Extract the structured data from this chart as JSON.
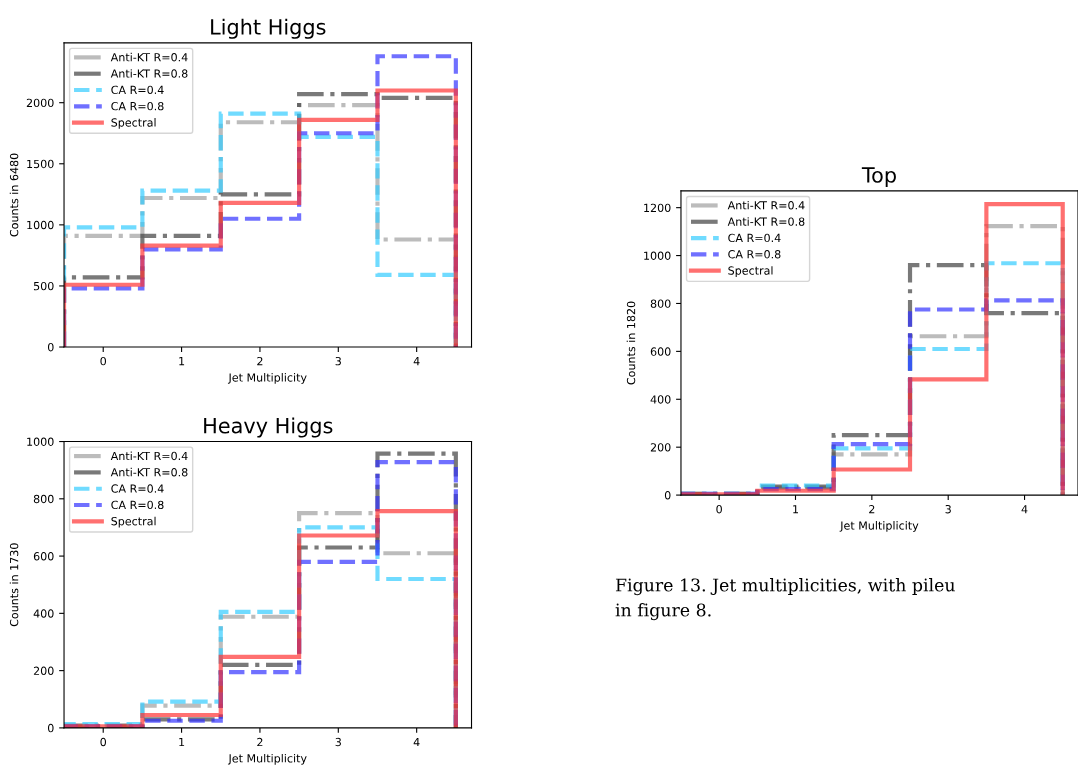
{
  "chart_data": [
    {
      "type": "histogram",
      "title": "Light Higgs",
      "xlabel": "Jet Multiplicity",
      "ylabel": "Counts in 6480",
      "bins": [
        -0.5,
        0.5,
        1.5,
        2.5,
        3.5,
        4.5
      ],
      "xlim": [
        -0.5,
        4.7
      ],
      "xticks": [
        0,
        1,
        2,
        3,
        4
      ],
      "ylim": [
        0,
        2490
      ],
      "yticks": [
        0,
        500,
        1000,
        1500,
        2000
      ],
      "legend": "top left",
      "grid": false,
      "series": [
        {
          "name": "Anti-KT R=0.4",
          "color": "#a0a0a0",
          "line_style": "dashdot",
          "values": [
            910,
            1220,
            1840,
            1980,
            880
          ]
        },
        {
          "name": "Anti-KT R=0.8",
          "color": "#404040",
          "line_style": "dashdot",
          "values": [
            570,
            910,
            1250,
            2070,
            2040
          ]
        },
        {
          "name": "CA R=0.4",
          "color": "#33ccff",
          "line_style": "dashed",
          "values": [
            980,
            1280,
            1910,
            1720,
            590
          ]
        },
        {
          "name": "CA R=0.8",
          "color": "#3333ff",
          "line_style": "dashed",
          "values": [
            480,
            800,
            1050,
            1750,
            2380
          ]
        },
        {
          "name": "Spectral",
          "color": "#ff3333",
          "line_style": "solid",
          "values": [
            510,
            830,
            1180,
            1860,
            2100
          ]
        }
      ]
    },
    {
      "type": "histogram",
      "title": "Heavy Higgs",
      "xlabel": "Jet Multiplicity",
      "ylabel": "Counts in 1730",
      "bins": [
        -0.5,
        0.5,
        1.5,
        2.5,
        3.5,
        4.5
      ],
      "xlim": [
        -0.5,
        4.7
      ],
      "xticks": [
        0,
        1,
        2,
        3,
        4
      ],
      "ylim": [
        0,
        1000
      ],
      "yticks": [
        0,
        200,
        400,
        600,
        800,
        1000
      ],
      "legend": "top left",
      "grid": false,
      "series": [
        {
          "name": "Anti-KT R=0.4",
          "color": "#a0a0a0",
          "line_style": "dashdot",
          "values": [
            10,
            78,
            388,
            750,
            610
          ]
        },
        {
          "name": "Anti-KT R=0.8",
          "color": "#404040",
          "line_style": "dashdot",
          "values": [
            5,
            30,
            220,
            630,
            958
          ]
        },
        {
          "name": "CA R=0.4",
          "color": "#33ccff",
          "line_style": "dashed",
          "values": [
            13,
            92,
            405,
            700,
            520
          ]
        },
        {
          "name": "CA R=0.8",
          "color": "#3333ff",
          "line_style": "dashed",
          "values": [
            5,
            25,
            195,
            580,
            928
          ]
        },
        {
          "name": "Spectral",
          "color": "#ff3333",
          "line_style": "solid",
          "values": [
            5,
            45,
            248,
            672,
            757
          ]
        }
      ]
    },
    {
      "type": "histogram",
      "title": "Top",
      "xlabel": "Jet Multiplicity",
      "ylabel": "Counts in 1820",
      "bins": [
        -0.5,
        0.5,
        1.5,
        2.5,
        3.5,
        4.5
      ],
      "xlim": [
        -0.5,
        4.7
      ],
      "xticks": [
        0,
        1,
        2,
        3,
        4
      ],
      "ylim": [
        0,
        1270
      ],
      "yticks": [
        0,
        200,
        400,
        600,
        800,
        1000,
        1200
      ],
      "legend": "top left",
      "grid": false,
      "annotations": [
        "Figure 13. Jet multiplicities, with pileu\nin figure 8."
      ],
      "series": [
        {
          "name": "Anti-KT R=0.4",
          "color": "#a0a0a0",
          "line_style": "dashdot",
          "values": [
            5,
            30,
            170,
            663,
            1123
          ]
        },
        {
          "name": "Anti-KT R=0.8",
          "color": "#404040",
          "line_style": "dashdot",
          "values": [
            5,
            35,
            250,
            960,
            760
          ]
        },
        {
          "name": "CA R=0.4",
          "color": "#33ccff",
          "line_style": "dashed",
          "values": [
            5,
            40,
            195,
            610,
            968
          ]
        },
        {
          "name": "CA R=0.8",
          "color": "#3333ff",
          "line_style": "dashed",
          "values": [
            5,
            25,
            213,
            775,
            813
          ]
        },
        {
          "name": "Spectral",
          "color": "#ff3333",
          "line_style": "solid",
          "values": [
            3,
            18,
            107,
            483,
            1215
          ]
        }
      ]
    }
  ]
}
